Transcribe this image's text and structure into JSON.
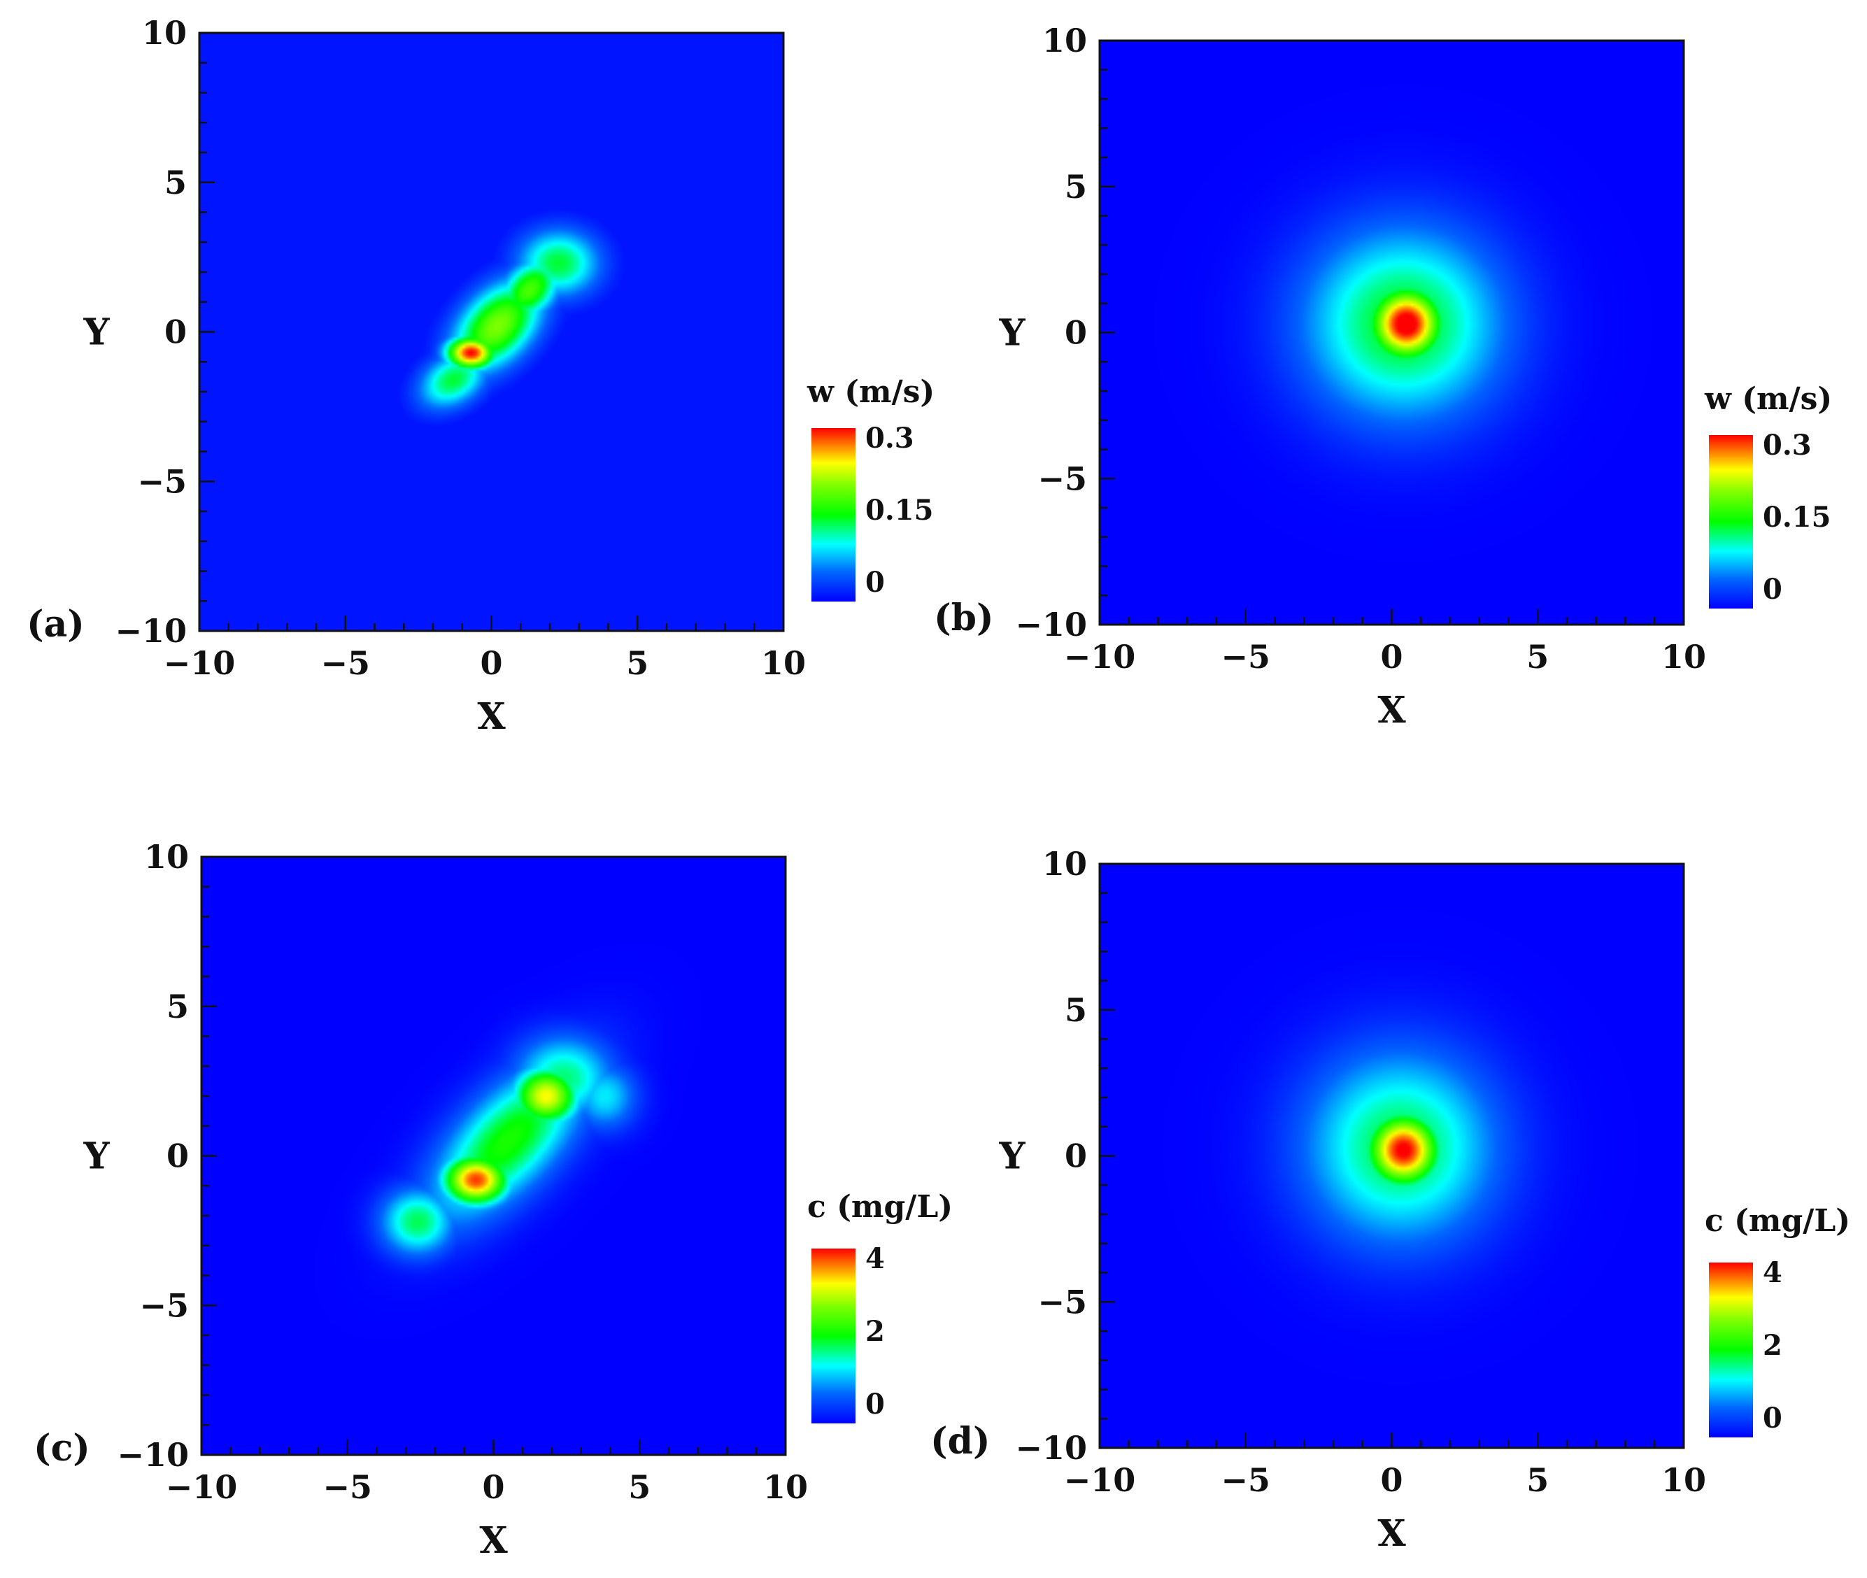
{
  "chart_data": [
    {
      "type": "heatmap",
      "panel_label": "(a)",
      "xlabel": "X",
      "ylabel": "Y",
      "xlim": [
        -10,
        10
      ],
      "ylim": [
        -10,
        10
      ],
      "xticks": [
        "−10",
        "−5",
        "0",
        "5",
        "10"
      ],
      "yticks": [
        "−10",
        "−5",
        "0",
        "5",
        "10"
      ],
      "colorbar": {
        "title": "w (m/s)",
        "ticks": [
          "0.3",
          "0.15",
          "0"
        ],
        "range": [
          0,
          0.3
        ]
      },
      "background_value": 0.01,
      "features": [
        {
          "x": -0.7,
          "y": -0.7,
          "peak": 0.3,
          "sx": 0.6,
          "sy": 0.4
        },
        {
          "x": 0.2,
          "y": 0.2,
          "peak": 0.2,
          "sx": 1.3,
          "sy": 0.8,
          "angle_deg": 45
        },
        {
          "x": 1.3,
          "y": 1.4,
          "peak": 0.18,
          "sx": 0.9,
          "sy": 0.6,
          "angle_deg": 45
        },
        {
          "x": 2.3,
          "y": 2.3,
          "peak": 0.14,
          "sx": 1.0,
          "sy": 0.8
        },
        {
          "x": -1.3,
          "y": -1.6,
          "peak": 0.14,
          "sx": 0.9,
          "sy": 0.6,
          "angle_deg": 30
        }
      ]
    },
    {
      "type": "heatmap",
      "panel_label": "(b)",
      "xlabel": "X",
      "ylabel": "Y",
      "xlim": [
        -10,
        10
      ],
      "ylim": [
        -10,
        10
      ],
      "xticks": [
        "−10",
        "−5",
        "0",
        "5",
        "10"
      ],
      "yticks": [
        "−10",
        "−5",
        "0",
        "5",
        "10"
      ],
      "colorbar": {
        "title": "w (m/s)",
        "ticks": [
          "0.3",
          "0.15",
          "0"
        ],
        "range": [
          0,
          0.3
        ]
      },
      "background_value": 0.0,
      "features": [
        {
          "x": 0.5,
          "y": 0.3,
          "peak": 0.32,
          "sx": 0.9,
          "sy": 0.9
        },
        {
          "x": 0.4,
          "y": 0.3,
          "peak": 0.15,
          "sx": 2.4,
          "sy": 2.3
        },
        {
          "x": -1.5,
          "y": -0.5,
          "peak": 0.06,
          "sx": 1.2,
          "sy": 1.4
        },
        {
          "x": 2.5,
          "y": 1.5,
          "peak": 0.06,
          "sx": 1.2,
          "sy": 1.4
        },
        {
          "x": 0.3,
          "y": 3.0,
          "peak": 0.05,
          "sx": 1.6,
          "sy": 1.0
        },
        {
          "x": 0.5,
          "y": -2.8,
          "peak": 0.05,
          "sx": 1.6,
          "sy": 0.9
        }
      ]
    },
    {
      "type": "heatmap",
      "panel_label": "(c)",
      "xlabel": "X",
      "ylabel": "Y",
      "xlim": [
        -10,
        10
      ],
      "ylim": [
        -10,
        10
      ],
      "xticks": [
        "−10",
        "−5",
        "0",
        "5",
        "10"
      ],
      "yticks": [
        "−10",
        "−5",
        "0",
        "5",
        "10"
      ],
      "colorbar": {
        "title": "c (mg/L)",
        "ticks": [
          "4",
          "2",
          "0"
        ],
        "range": [
          0,
          4.5
        ]
      },
      "background_value": 0.0,
      "features": [
        {
          "x": -0.6,
          "y": -0.8,
          "peak": 4.3,
          "sx": 0.8,
          "sy": 0.6
        },
        {
          "x": 1.8,
          "y": 2.0,
          "peak": 3.6,
          "sx": 0.8,
          "sy": 0.7
        },
        {
          "x": 0.5,
          "y": 0.5,
          "peak": 2.4,
          "sx": 2.4,
          "sy": 1.1,
          "angle_deg": 45
        },
        {
          "x": -2.6,
          "y": -2.2,
          "peak": 2.0,
          "sx": 0.9,
          "sy": 0.8
        },
        {
          "x": 2.4,
          "y": 2.6,
          "peak": 1.9,
          "sx": 1.2,
          "sy": 1.0
        },
        {
          "x": 3.8,
          "y": 2.0,
          "peak": 1.4,
          "sx": 0.8,
          "sy": 0.8
        }
      ]
    },
    {
      "type": "heatmap",
      "panel_label": "(d)",
      "xlabel": "X",
      "ylabel": "Y",
      "xlim": [
        -10,
        10
      ],
      "ylim": [
        -10,
        10
      ],
      "xticks": [
        "−10",
        "−5",
        "0",
        "5",
        "10"
      ],
      "yticks": [
        "−10",
        "−5",
        "0",
        "5",
        "10"
      ],
      "colorbar": {
        "title": "c (mg/L)",
        "ticks": [
          "4",
          "2",
          "0"
        ],
        "range": [
          0,
          4.5
        ]
      },
      "background_value": 0.0,
      "features": [
        {
          "x": 0.4,
          "y": 0.2,
          "peak": 4.6,
          "sx": 0.9,
          "sy": 0.9
        },
        {
          "x": 0.3,
          "y": 0.3,
          "peak": 2.1,
          "sx": 2.3,
          "sy": 2.3
        },
        {
          "x": -1.6,
          "y": 0.0,
          "peak": 0.8,
          "sx": 1.2,
          "sy": 1.5
        },
        {
          "x": 2.6,
          "y": 1.0,
          "peak": 0.8,
          "sx": 1.1,
          "sy": 1.6
        },
        {
          "x": 0.3,
          "y": 2.8,
          "peak": 0.8,
          "sx": 1.5,
          "sy": 1.0
        },
        {
          "x": 0.6,
          "y": -2.6,
          "peak": 0.8,
          "sx": 1.5,
          "sy": 0.9
        }
      ]
    }
  ]
}
